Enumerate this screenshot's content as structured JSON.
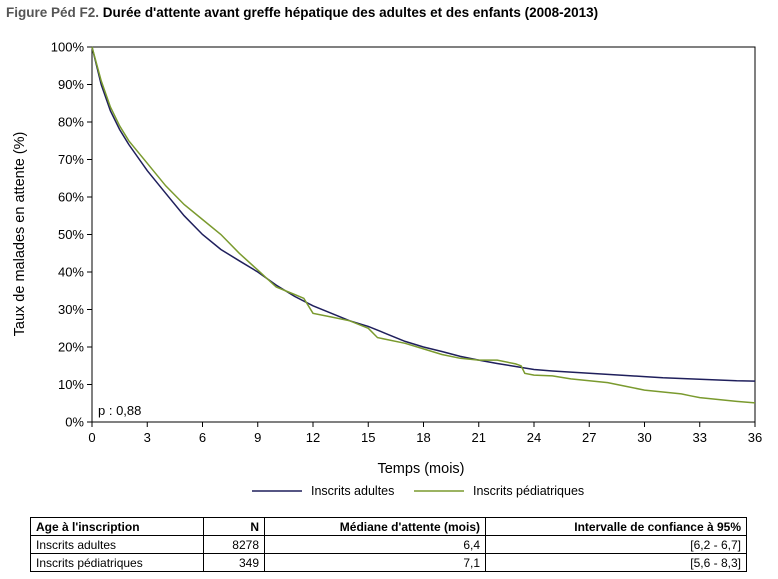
{
  "figure": {
    "prefix": "Figure Péd F2.",
    "title": "Durée d'attente avant greffe hépatique des adultes et des enfants (2008-2013)"
  },
  "chart_data": {
    "type": "line",
    "title": "Durée d'attente avant greffe hépatique des adultes et des enfants (2008-2013)",
    "xlabel": "Temps (mois)",
    "ylabel": "Taux de malades en attente (%)",
    "xlim": [
      0,
      36
    ],
    "ylim": [
      0,
      100
    ],
    "x_ticks": [
      0,
      3,
      6,
      9,
      12,
      15,
      18,
      21,
      24,
      27,
      30,
      33,
      36
    ],
    "y_ticks": [
      0,
      10,
      20,
      30,
      40,
      50,
      60,
      70,
      80,
      90,
      100
    ],
    "y_tick_labels": [
      "0%",
      "10%",
      "20%",
      "30%",
      "40%",
      "50%",
      "60%",
      "70%",
      "80%",
      "90%",
      "100%"
    ],
    "grid": false,
    "legend": "bottom",
    "annotation": "p : 0,88",
    "series": [
      {
        "name": "Inscrits adultes",
        "color": "#1f1f5c",
        "x": [
          0,
          0.5,
          1,
          1.5,
          2,
          3,
          4,
          5,
          6,
          7,
          8,
          9,
          10,
          11,
          12,
          13,
          14,
          15,
          16,
          17,
          18,
          19,
          20,
          21,
          22,
          23,
          24,
          25,
          26,
          27,
          28,
          29,
          30,
          31,
          32,
          33,
          34,
          35,
          36
        ],
        "values": [
          100,
          90,
          83,
          78,
          74,
          67,
          61,
          55,
          50,
          46,
          43,
          40,
          36.5,
          33.5,
          31,
          29,
          27,
          25.5,
          23.5,
          21.5,
          20,
          18.8,
          17.5,
          16.5,
          15.6,
          14.8,
          14,
          13.6,
          13.3,
          13,
          12.7,
          12.4,
          12.1,
          11.8,
          11.6,
          11.4,
          11.2,
          11,
          10.9
        ]
      },
      {
        "name": "Inscrits pédiatriques",
        "color": "#7a9a2e",
        "x": [
          0,
          0.5,
          1,
          1.5,
          2,
          3,
          4,
          5,
          6,
          7,
          8,
          9,
          10,
          11,
          11.5,
          12,
          13,
          14,
          15,
          15.5,
          16,
          17,
          18,
          19,
          20,
          21,
          22,
          23,
          23.3,
          23.5,
          24,
          25,
          26,
          27,
          28,
          29,
          30,
          31,
          32,
          32.5,
          33,
          34,
          35,
          36
        ],
        "values": [
          100,
          91,
          84,
          79,
          75,
          69,
          63,
          58,
          54,
          50,
          45,
          40.5,
          36,
          34,
          33,
          29,
          28,
          27,
          25,
          22.5,
          22,
          21,
          19.5,
          18,
          17,
          16.5,
          16.5,
          15.5,
          15,
          13,
          12.5,
          12.3,
          11.5,
          11,
          10.5,
          9.5,
          8.5,
          8,
          7.5,
          7,
          6.5,
          6,
          5.5,
          5.1
        ]
      }
    ]
  },
  "legend": {
    "adult": "Inscrits adultes",
    "pediatric": "Inscrits pédiatriques"
  },
  "table": {
    "headers": [
      "Age à l'inscription",
      "N",
      "Médiane d'attente (mois)",
      "Intervalle de confiance à 95%"
    ],
    "rows": [
      [
        "Inscrits adultes",
        "8278",
        "6,4",
        "[6,2 - 6,7]"
      ],
      [
        "Inscrits pédiatriques",
        "349",
        "7,1",
        "[5,6 - 8,3]"
      ]
    ]
  }
}
